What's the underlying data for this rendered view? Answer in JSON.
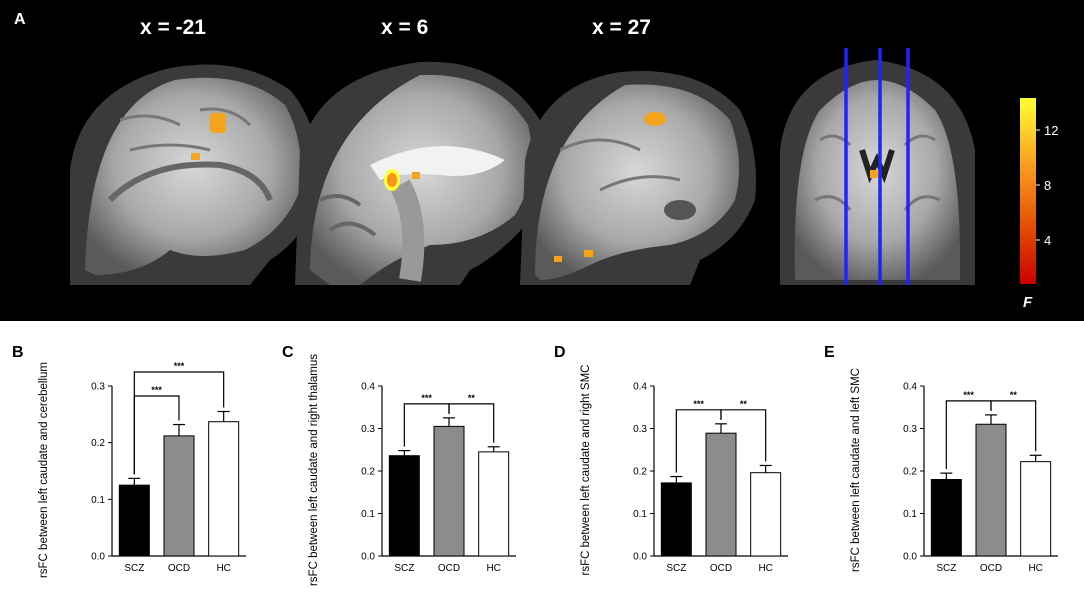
{
  "panel_a": {
    "letter": "A",
    "coords": [
      "x = -21",
      "x = 6",
      "x = 27"
    ],
    "colorbar": {
      "ticks": [
        "12",
        "8",
        "4"
      ],
      "label": "F",
      "colors": [
        "#ffff33",
        "#f7941d",
        "#e04000",
        "#cc0000"
      ]
    },
    "slice_line_color": "#2222ff",
    "cluster_color": "#f7a41d"
  },
  "chart_data": [
    {
      "letter": "B",
      "type": "bar",
      "categories": [
        "SCZ",
        "OCD",
        "HC"
      ],
      "values": [
        0.125,
        0.212,
        0.237
      ],
      "errors": [
        0.012,
        0.02,
        0.018
      ],
      "colors": [
        "#000000",
        "#8c8c8c",
        "#ffffff"
      ],
      "ylabel": "rsFC between left caudate and cerebellum",
      "ylim": [
        0,
        0.3
      ],
      "yticks": [
        "0.0",
        "0.1",
        "0.2",
        "0.3"
      ],
      "brackets": [
        {
          "from": 0,
          "to": 1,
          "label": "***"
        },
        {
          "from": 0,
          "to": 2,
          "label": "***"
        }
      ]
    },
    {
      "letter": "C",
      "type": "bar",
      "categories": [
        "SCZ",
        "OCD",
        "HC"
      ],
      "values": [
        0.236,
        0.305,
        0.245
      ],
      "errors": [
        0.012,
        0.02,
        0.012
      ],
      "colors": [
        "#000000",
        "#8c8c8c",
        "#ffffff"
      ],
      "ylabel": "rsFC between left caudate and right thalamus",
      "ylim": [
        0,
        0.4
      ],
      "yticks": [
        "0.0",
        "0.1",
        "0.2",
        "0.3",
        "0.4"
      ],
      "brackets": [
        {
          "from": 0,
          "to": 1,
          "label": "***"
        },
        {
          "from": 1,
          "to": 2,
          "label": "**"
        }
      ]
    },
    {
      "letter": "D",
      "type": "bar",
      "categories": [
        "SCZ",
        "OCD",
        "HC"
      ],
      "values": [
        0.172,
        0.289,
        0.196
      ],
      "errors": [
        0.015,
        0.022,
        0.017
      ],
      "colors": [
        "#000000",
        "#8c8c8c",
        "#ffffff"
      ],
      "ylabel": "rsFC between left caudate and right SMC",
      "ylim": [
        0,
        0.4
      ],
      "yticks": [
        "0.0",
        "0.1",
        "0.2",
        "0.3",
        "0.4"
      ],
      "brackets": [
        {
          "from": 0,
          "to": 1,
          "label": "***"
        },
        {
          "from": 1,
          "to": 2,
          "label": "**"
        }
      ]
    },
    {
      "letter": "E",
      "type": "bar",
      "categories": [
        "SCZ",
        "OCD",
        "HC"
      ],
      "values": [
        0.18,
        0.31,
        0.222
      ],
      "errors": [
        0.015,
        0.022,
        0.015
      ],
      "colors": [
        "#000000",
        "#8c8c8c",
        "#ffffff"
      ],
      "ylabel": "rsFC between left caudate and left SMC",
      "ylim": [
        0,
        0.4
      ],
      "yticks": [
        "0.0",
        "0.1",
        "0.2",
        "0.3",
        "0.4"
      ],
      "brackets": [
        {
          "from": 0,
          "to": 1,
          "label": "***"
        },
        {
          "from": 1,
          "to": 2,
          "label": "**"
        }
      ]
    }
  ]
}
